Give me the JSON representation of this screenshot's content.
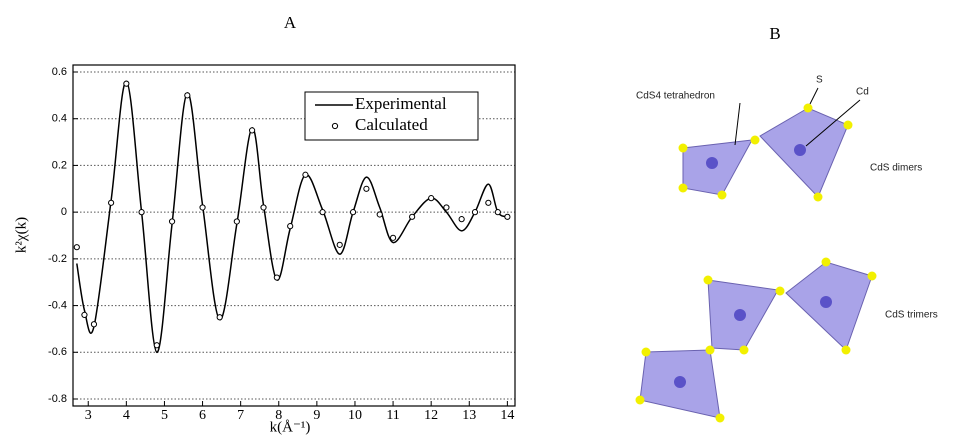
{
  "chart_data": {
    "type": "line",
    "title": "A",
    "xlabel": "k(Å⁻¹)",
    "ylabel": "k²χ(k)",
    "x": [
      2.7,
      2.9,
      3.15,
      3.6,
      4.0,
      4.4,
      4.8,
      5.2,
      5.6,
      6.0,
      6.45,
      6.9,
      7.3,
      7.6,
      7.95,
      8.3,
      8.7,
      9.15,
      9.6,
      9.95,
      10.3,
      10.65,
      11.0,
      11.5,
      12.0,
      12.4,
      12.8,
      13.15,
      13.5,
      13.75,
      14.0
    ],
    "series": [
      {
        "name": "Experimental",
        "color": "#000000",
        "style": "line",
        "values": [
          -0.22,
          -0.42,
          -0.49,
          0.05,
          0.56,
          0.0,
          -0.6,
          -0.05,
          0.51,
          0.03,
          -0.46,
          -0.05,
          0.36,
          0.03,
          -0.29,
          -0.07,
          0.16,
          0.01,
          -0.18,
          0.0,
          0.15,
          0.02,
          -0.13,
          -0.02,
          0.06,
          0.0,
          -0.08,
          0.0,
          0.12,
          0.0,
          -0.02
        ]
      },
      {
        "name": "Calculated",
        "color": "#000000",
        "style": "markers",
        "values": [
          -0.15,
          -0.44,
          -0.48,
          0.04,
          0.55,
          0.0,
          -0.57,
          -0.04,
          0.5,
          0.02,
          -0.45,
          -0.04,
          0.35,
          0.02,
          -0.28,
          -0.06,
          0.16,
          0.0,
          -0.14,
          0.0,
          0.1,
          -0.01,
          -0.11,
          -0.02,
          0.06,
          0.02,
          -0.03,
          0.0,
          0.04,
          0.0,
          -0.02
        ]
      }
    ],
    "xlim": [
      2.6,
      14.2
    ],
    "xticks": [
      3,
      4,
      5,
      6,
      7,
      8,
      9,
      10,
      11,
      12,
      13,
      14
    ],
    "ylim": [
      -0.83,
      0.63
    ],
    "yticks": [
      0.6,
      0.4,
      0.2,
      0,
      -0.2,
      -0.4,
      -0.6,
      -0.8
    ],
    "grid": true,
    "legend": "upper-right"
  },
  "diagram": {
    "label": "B",
    "tetrahedron_label": "CdS4 tetrahedron",
    "s_label": "S",
    "cd_label": "Cd",
    "dimers_label": "CdS dimers",
    "trimers_label": "CdS trimers"
  }
}
